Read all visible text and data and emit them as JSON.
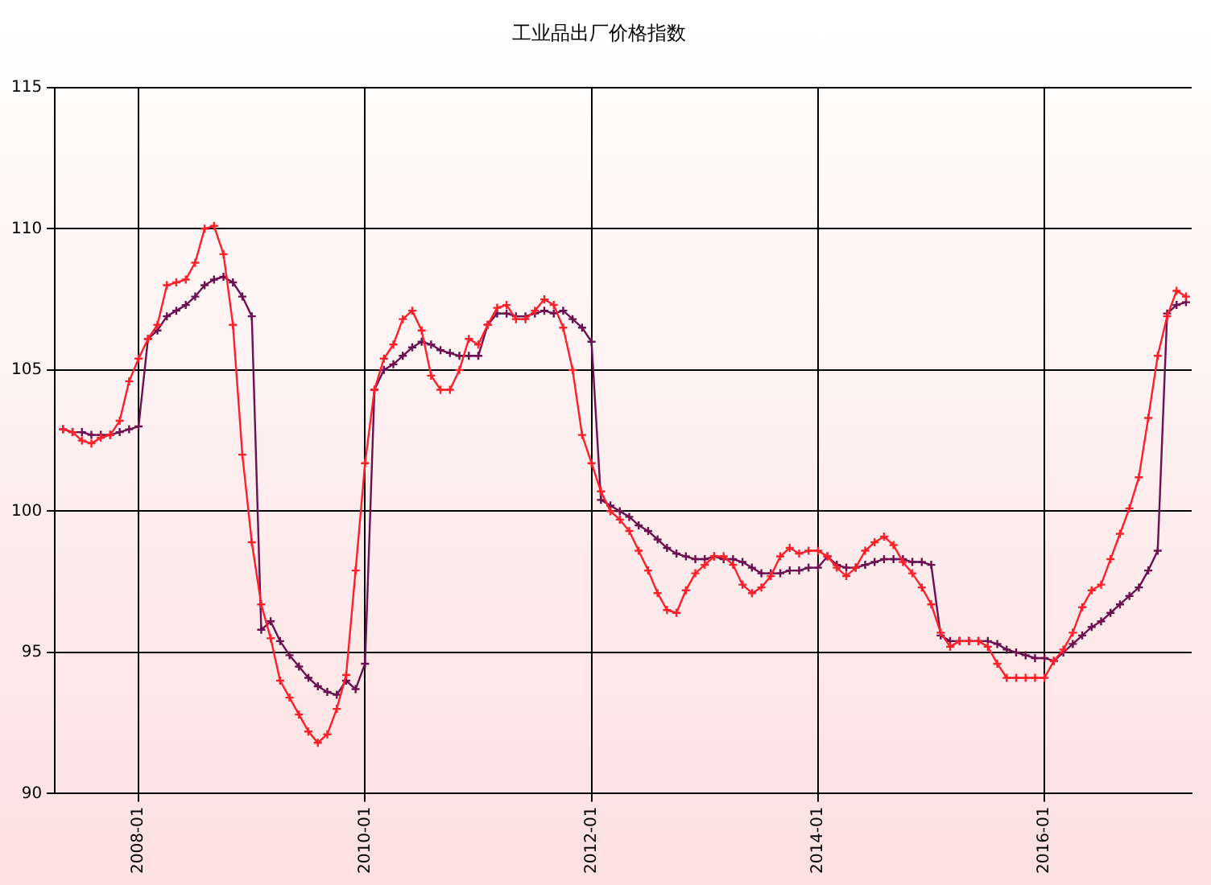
{
  "chart_data": {
    "type": "line",
    "title": "工业品出厂价格指数",
    "x": [
      "2007-05",
      "2007-06",
      "2007-07",
      "2007-08",
      "2007-09",
      "2007-10",
      "2007-11",
      "2007-12",
      "2008-01",
      "2008-02",
      "2008-03",
      "2008-04",
      "2008-05",
      "2008-06",
      "2008-07",
      "2008-08",
      "2008-09",
      "2008-10",
      "2008-11",
      "2008-12",
      "2009-01",
      "2009-02",
      "2009-03",
      "2009-04",
      "2009-05",
      "2009-06",
      "2009-07",
      "2009-08",
      "2009-09",
      "2009-10",
      "2009-11",
      "2009-12",
      "2010-01",
      "2010-02",
      "2010-03",
      "2010-04",
      "2010-05",
      "2010-06",
      "2010-07",
      "2010-08",
      "2010-09",
      "2010-10",
      "2010-11",
      "2010-12",
      "2011-01",
      "2011-02",
      "2011-03",
      "2011-04",
      "2011-05",
      "2011-06",
      "2011-07",
      "2011-08",
      "2011-09",
      "2011-10",
      "2011-11",
      "2011-12",
      "2012-01",
      "2012-02",
      "2012-03",
      "2012-04",
      "2012-05",
      "2012-06",
      "2012-07",
      "2012-08",
      "2012-09",
      "2012-10",
      "2012-11",
      "2012-12",
      "2013-01",
      "2013-02",
      "2013-03",
      "2013-04",
      "2013-05",
      "2013-06",
      "2013-07",
      "2013-08",
      "2013-09",
      "2013-10",
      "2013-11",
      "2013-12",
      "2014-01",
      "2014-02",
      "2014-03",
      "2014-04",
      "2014-05",
      "2014-06",
      "2014-07",
      "2014-08",
      "2014-09",
      "2014-10",
      "2014-11",
      "2014-12",
      "2015-01",
      "2015-02",
      "2015-03",
      "2015-04",
      "2015-05",
      "2015-06",
      "2015-07",
      "2015-08",
      "2015-09",
      "2015-10",
      "2015-11",
      "2015-12",
      "2016-01",
      "2016-02",
      "2016-03",
      "2016-04",
      "2016-05",
      "2016-06",
      "2016-07",
      "2016-08",
      "2016-09",
      "2016-10",
      "2016-11",
      "2016-12",
      "2017-01",
      "2017-02",
      "2017-03",
      "2017-04"
    ],
    "series": [
      {
        "color": "#ff1f2a",
        "values": [
          102.9,
          102.8,
          102.5,
          102.4,
          102.6,
          102.7,
          103.2,
          104.6,
          105.4,
          106.1,
          106.6,
          108.0,
          108.1,
          108.2,
          108.8,
          110.0,
          110.1,
          109.1,
          106.6,
          102.0,
          98.9,
          96.7,
          95.5,
          94.0,
          93.4,
          92.8,
          92.2,
          91.8,
          92.1,
          93.0,
          94.2,
          97.9,
          101.7,
          104.3,
          105.4,
          105.9,
          106.8,
          107.1,
          106.4,
          104.8,
          104.3,
          104.3,
          105.0,
          106.1,
          105.9,
          106.6,
          107.2,
          107.3,
          106.8,
          106.8,
          107.1,
          107.5,
          107.3,
          106.5,
          105.0,
          102.7,
          101.7,
          100.7,
          100.0,
          99.7,
          99.3,
          98.6,
          97.9,
          97.1,
          96.5,
          96.4,
          97.2,
          97.8,
          98.1,
          98.4,
          98.4,
          98.1,
          97.4,
          97.1,
          97.3,
          97.7,
          98.4,
          98.7,
          98.5,
          98.6,
          98.6,
          98.4,
          98.0,
          97.7,
          98.0,
          98.6,
          98.9,
          99.1,
          98.8,
          98.2,
          97.8,
          97.3,
          96.7,
          95.7,
          95.2,
          95.4,
          95.4,
          95.4,
          95.2,
          94.6,
          94.1,
          94.1,
          94.1,
          94.1,
          94.1,
          94.7,
          95.1,
          95.7,
          96.6,
          97.2,
          97.4,
          98.3,
          99.2,
          100.1,
          101.2,
          103.3,
          105.5,
          106.9,
          107.8,
          107.6
        ]
      },
      {
        "color": "#6b1050",
        "values": [
          102.9,
          102.8,
          102.8,
          102.7,
          102.7,
          102.7,
          102.8,
          102.9,
          103.0,
          106.1,
          106.4,
          106.9,
          107.1,
          107.3,
          107.6,
          108.0,
          108.2,
          108.3,
          108.1,
          107.6,
          106.9,
          95.8,
          96.1,
          95.4,
          94.9,
          94.5,
          94.1,
          93.8,
          93.6,
          93.5,
          94.0,
          93.7,
          94.6,
          104.3,
          105.0,
          105.2,
          105.5,
          105.8,
          106.0,
          105.9,
          105.7,
          105.6,
          105.5,
          105.5,
          105.5,
          106.6,
          107.0,
          107.0,
          106.9,
          106.9,
          107.0,
          107.1,
          107.0,
          107.1,
          106.8,
          106.5,
          106.0,
          100.4,
          100.2,
          100.0,
          99.8,
          99.5,
          99.3,
          99.0,
          98.7,
          98.5,
          98.4,
          98.3,
          98.3,
          98.4,
          98.3,
          98.3,
          98.2,
          98.0,
          97.8,
          97.8,
          97.8,
          97.9,
          97.9,
          98.0,
          98.0,
          98.4,
          98.1,
          98.0,
          98.0,
          98.1,
          98.2,
          98.3,
          98.3,
          98.3,
          98.2,
          98.2,
          98.1,
          95.6,
          95.4,
          95.4,
          95.4,
          95.4,
          95.4,
          95.3,
          95.1,
          95.0,
          94.9,
          94.8,
          94.8,
          94.7,
          95.0,
          95.3,
          95.6,
          95.9,
          96.1,
          96.4,
          96.7,
          97.0,
          97.3,
          97.9,
          98.6,
          107.0,
          107.3,
          107.4
        ]
      }
    ],
    "xlim": [
      "2007-04-05",
      "2017-04-19"
    ],
    "xticks": [
      "2008-01",
      "2010-01",
      "2012-01",
      "2014-01",
      "2016-01"
    ],
    "ylim": [
      90,
      115
    ],
    "yticks": [
      90,
      95,
      100,
      105,
      110,
      115
    ],
    "grid": true,
    "legend": false,
    "marker": "cross",
    "line_style": "solid"
  }
}
